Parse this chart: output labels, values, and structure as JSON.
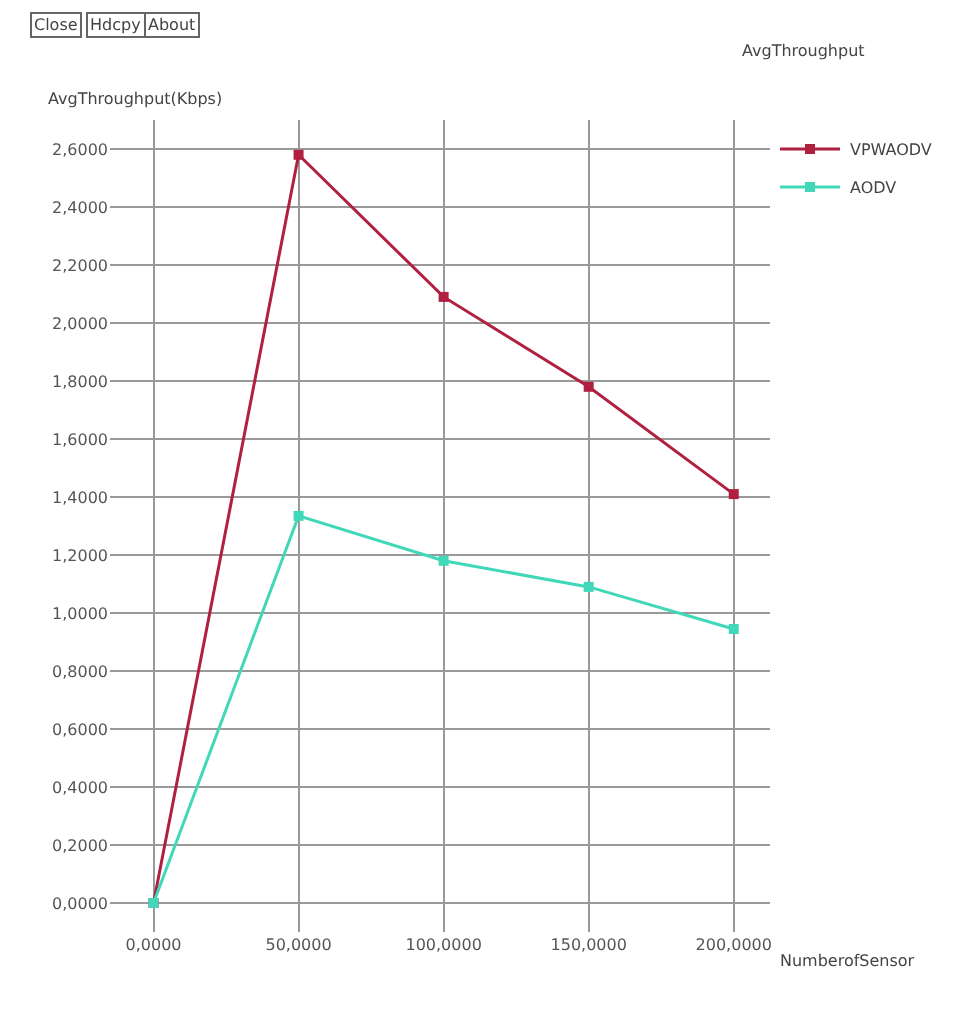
{
  "chart_data": {
    "type": "line",
    "title": "AvgThroughput",
    "xlabel": "NumberofSensor",
    "ylabel": "AvgThroughput(Kbps)",
    "annotations": [
      "Close",
      "Hdcpy",
      "About"
    ],
    "categories": [
      "0,0000",
      "50,0000",
      "100,0000",
      "150,0000",
      "200,0000"
    ],
    "series": [
      {
        "name": "VPWAODV",
        "color": "#b02040",
        "values": [
          0,
          2.58,
          2.09,
          1.78,
          1.41
        ]
      },
      {
        "name": "AODV",
        "color": "#40d8b8",
        "values": [
          0,
          1.335,
          1.18,
          1.09,
          0.945
        ]
      }
    ],
    "ylim": [
      -0.1,
      2.7
    ],
    "yticks": [
      {
        "value": 0,
        "label": "0,0000"
      },
      {
        "value": 0.2,
        "label": "0,2000"
      },
      {
        "value": 0.4,
        "label": "0,4000"
      },
      {
        "value": 0.6,
        "label": "0,6000"
      },
      {
        "value": 0.8,
        "label": "0,8000"
      },
      {
        "value": 1.0,
        "label": "1,0000"
      },
      {
        "value": 1.2,
        "label": "1,2000"
      },
      {
        "value": 1.4,
        "label": "1,4000"
      },
      {
        "value": 1.6,
        "label": "1,6000"
      },
      {
        "value": 1.8,
        "label": "1,8000"
      },
      {
        "value": 2.0,
        "label": "2,0000"
      },
      {
        "value": 2.2,
        "label": "2,2000"
      },
      {
        "value": 2.4,
        "label": "2,4000"
      },
      {
        "value": 2.6,
        "label": "2,6000"
      }
    ],
    "grid": true,
    "legend": "top right",
    "marker": "square",
    "line_style": "solid"
  }
}
